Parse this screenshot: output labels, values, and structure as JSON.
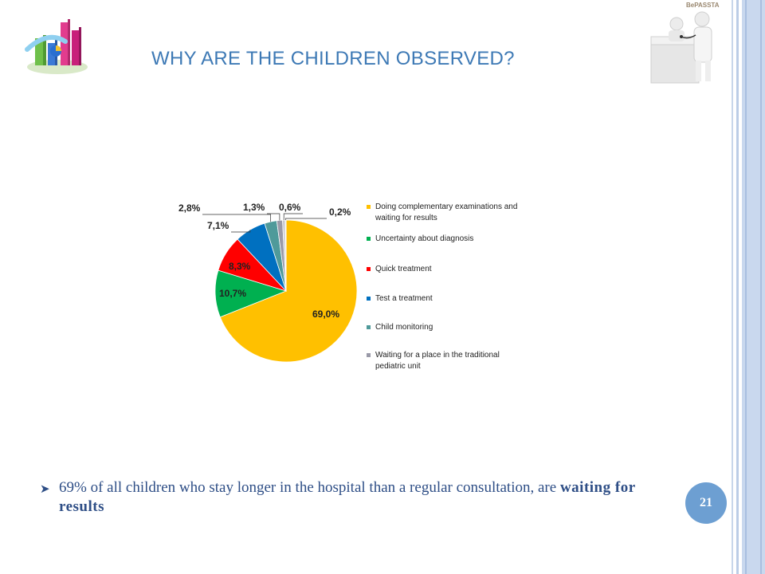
{
  "slide": {
    "title": "WHY ARE THE CHILDREN OBSERVED?",
    "brand": "BePASSTA",
    "page_number": "21",
    "bullet": {
      "text": "69% of all children who stay longer in the hospital than a regular consultation, are ",
      "emphasis": "waiting for results"
    }
  },
  "colors": {
    "title": "#3d79b5",
    "bullet_text": "#2e4e86",
    "page_badge": "#6d9fd2"
  },
  "chart_data": {
    "type": "pie",
    "title": "",
    "slices": [
      {
        "label": "Doing complementary examinations and waiting for results",
        "value": 69.0,
        "text": "69,0%",
        "color": "#ffc000"
      },
      {
        "label": "Uncertainty about diagnosis",
        "value": 10.7,
        "text": "10,7%",
        "color": "#00b050"
      },
      {
        "label": "Quick treatment",
        "value": 8.3,
        "text": "8,3%",
        "color": "#ff0000"
      },
      {
        "label": "Test a treatment",
        "value": 7.1,
        "text": "7,1%",
        "color": "#0070c0"
      },
      {
        "label": "Child monitoring",
        "value": 2.8,
        "text": "2,8%",
        "color": "#4f9a9a"
      },
      {
        "label": "Waiting for a place in the traditional pediatric unit",
        "value": 1.3,
        "text": "1,3%",
        "color": "#9a9aa8"
      },
      {
        "label": "",
        "value": 0.6,
        "text": "0,6%",
        "color": "#c7c7cf"
      },
      {
        "label": "",
        "value": 0.2,
        "text": "0,2%",
        "color": "#e0e0e6"
      }
    ],
    "legend_position": "right",
    "legend": [
      {
        "line1": "Doing complementary examinations and",
        "line2": "waiting for results",
        "color": "#ffc000"
      },
      {
        "line1": "Uncertainty about diagnosis",
        "line2": "",
        "color": "#00b050"
      },
      {
        "line1": "Quick treatment",
        "line2": "",
        "color": "#ff0000"
      },
      {
        "line1": "Test a treatment",
        "line2": "",
        "color": "#0070c0"
      },
      {
        "line1": "Child monitoring",
        "line2": "",
        "color": "#4f9a9a"
      },
      {
        "line1": "Waiting for a place in the traditional",
        "line2": "pediatric unit",
        "color": "#9a9aa8"
      }
    ]
  }
}
